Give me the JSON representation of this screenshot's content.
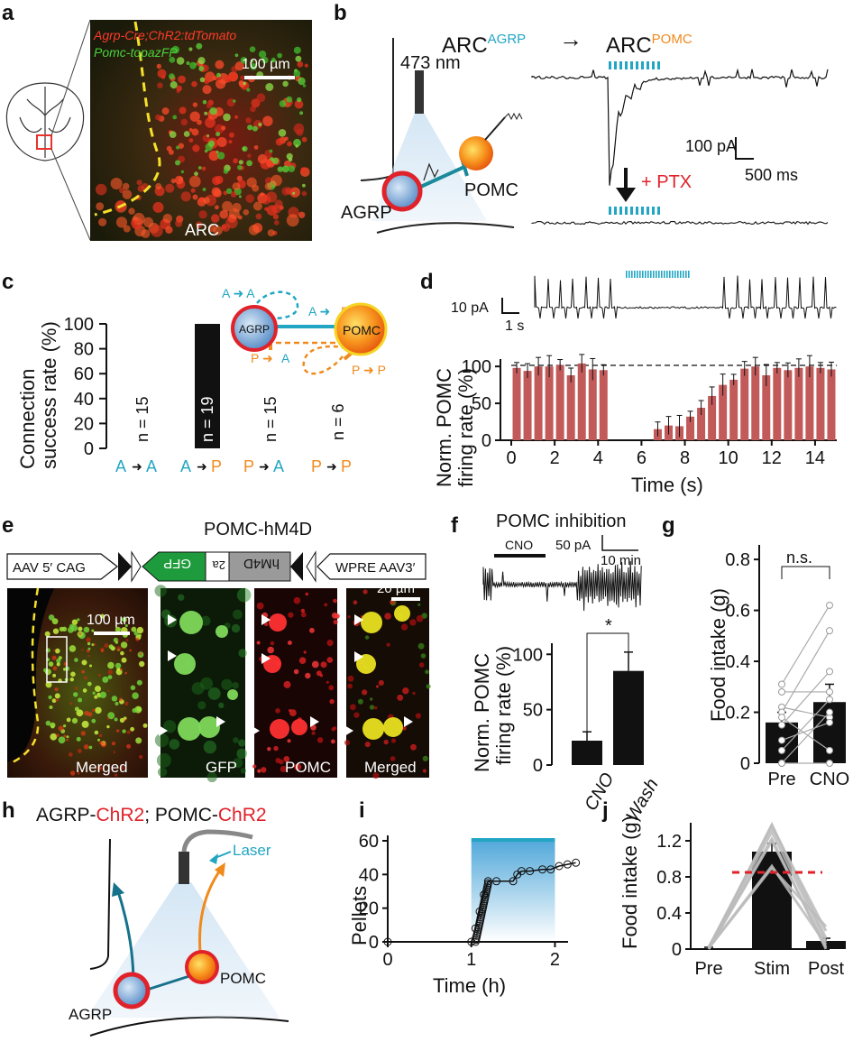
{
  "panels": {
    "a": {
      "letter": "a",
      "l1": "Agrp-Cre;ChR2:tdTomato",
      "l2": "Pomc-topazFP",
      "scale": "100 µm",
      "region": "ARC"
    },
    "b": {
      "letter": "b",
      "src": "ARC",
      "src_sup": "AGRP",
      "dst": "ARC",
      "dst_sup": "POMC",
      "wavelength": "473 nm",
      "pomc": "POMC",
      "agrp": "AGRP",
      "pa": "100 pA",
      "ms": "500 ms",
      "ptx": "+ PTX"
    },
    "c": {
      "letter": "c",
      "ylabel1": "Connection",
      "ylabel2": "success rate (%)",
      "ticks": [
        "0",
        "20",
        "40",
        "60",
        "80",
        "100"
      ],
      "ns": [
        "n = 15",
        "n = 19",
        "n = 15",
        "n = 6"
      ],
      "agrp": "AGRP",
      "pomc": "POMC"
    },
    "d": {
      "letter": "d",
      "trace_pa": "10 pA",
      "trace_s": "1 s",
      "ylabel1": "Norm. POMC",
      "ylabel2": "firing rate (%)",
      "xlabel": "Time (s)",
      "yticks": [
        "0",
        "50",
        "100"
      ],
      "xticks": [
        "0",
        "2",
        "4",
        "6",
        "8",
        "10",
        "12",
        "14"
      ]
    },
    "e": {
      "letter": "e",
      "title": "POMC-hM4D",
      "aav5": "AAV 5′ CAG",
      "gfp": "GFP",
      "p2a": "2a",
      "hm4d": "hM4D",
      "wpre": "WPRE AAV3′",
      "scale1": "100 µm",
      "scale2": "20 µm",
      "cap1": "Merged",
      "cap2": "GFP",
      "cap3": "POMC",
      "cap4": "Merged"
    },
    "f": {
      "letter": "f",
      "title": "POMC inhibition",
      "cno_bar": "CNO",
      "pa": "50 pA",
      "min": "10 min",
      "ylabel1": "Norm. POMC",
      "ylabel2": "firing rate (%)",
      "yticks": [
        "0",
        "50",
        "100"
      ],
      "star": "*",
      "xcats": [
        "CNO",
        "Wash"
      ]
    },
    "g": {
      "letter": "g",
      "ylabel": "Food intake (g)",
      "yticks": [
        "0",
        "0.2",
        "0.4",
        "0.6",
        "0.8"
      ],
      "ns": "n.s.",
      "xcats": [
        "Pre",
        "CNO"
      ]
    },
    "h": {
      "letter": "h",
      "t1": "AGRP-",
      "t2": "ChR2",
      "t3": "; POMC-",
      "t4": "ChR2",
      "laser": "Laser",
      "pomc": "POMC",
      "agrp": "AGRP"
    },
    "i": {
      "letter": "i",
      "ylabel": "Pellets",
      "xlabel": "Time (h)",
      "yticks": [
        "0",
        "20",
        "40",
        "60"
      ],
      "xticks": [
        "0",
        "1",
        "2"
      ]
    },
    "j": {
      "letter": "j",
      "ylabel": "Food intake (g)",
      "yticks": [
        "0",
        "0.4",
        "0.8",
        "1.2"
      ],
      "xcats": [
        "Pre",
        "Stim",
        "Post"
      ]
    }
  },
  "chart_data": [
    {
      "panel": "c",
      "type": "bar",
      "categories": [
        "A→A",
        "A→P",
        "P→A",
        "P→P"
      ],
      "values": [
        0,
        100,
        0,
        0
      ],
      "ylabel": "Connection success rate (%)",
      "ylim": [
        0,
        100
      ]
    },
    {
      "panel": "d",
      "type": "bar",
      "x": [
        0.25,
        0.75,
        1.25,
        1.75,
        2.25,
        2.75,
        3.25,
        3.75,
        4.25,
        4.75,
        5.25,
        5.75,
        6.25,
        6.75,
        7.25,
        7.75,
        8.25,
        8.75,
        9.25,
        9.75,
        10.25,
        10.75,
        11.25,
        11.75,
        12.25,
        12.75,
        13.25,
        13.75,
        14.25,
        14.75
      ],
      "values": [
        98,
        94,
        100,
        100,
        102,
        88,
        104,
        96,
        95,
        0,
        0,
        0,
        0,
        15,
        20,
        19,
        32,
        44,
        60,
        75,
        82,
        97,
        100,
        88,
        98,
        95,
        98,
        100,
        98,
        96
      ],
      "ylabel": "Norm. POMC firing rate (%)",
      "xlabel": "Time (s)",
      "xlim": [
        0,
        15
      ],
      "ylim": [
        0,
        110
      ]
    },
    {
      "panel": "f",
      "type": "bar",
      "categories": [
        "CNO",
        "Wash"
      ],
      "values": [
        22,
        85
      ],
      "errors": [
        8,
        17
      ],
      "ylabel": "Norm. POMC firing rate (%)",
      "ylim": [
        0,
        110
      ]
    },
    {
      "panel": "g",
      "type": "bar",
      "categories": [
        "Pre",
        "CNO"
      ],
      "values": [
        0.16,
        0.24
      ],
      "errors": [
        0.04,
        0.07
      ],
      "ylabel": "Food intake (g)",
      "ylim": [
        0,
        0.85
      ],
      "paired": [
        [
          0.31,
          0.62
        ],
        [
          0.28,
          0.28
        ],
        [
          0.22,
          0.18
        ],
        [
          0.2,
          0.52
        ],
        [
          0.15,
          0.36
        ],
        [
          0.05,
          0.25
        ],
        [
          0.18,
          0.05
        ],
        [
          0.0,
          0.2
        ],
        [
          0.09,
          0.16
        ],
        [
          0.0,
          0.0
        ]
      ]
    },
    {
      "panel": "i",
      "type": "line",
      "xlabel": "Time (h)",
      "ylabel": "Pellets",
      "xlim": [
        0,
        2.2
      ],
      "ylim": [
        0,
        60
      ],
      "x": [
        0,
        1,
        1.05,
        1.1,
        1.15,
        1.2,
        1.3,
        1.5,
        1.55,
        1.6,
        1.7,
        1.85,
        1.95,
        2.05,
        2.15,
        2.25
      ],
      "y": [
        0,
        0,
        8,
        18,
        28,
        36,
        36,
        36,
        40,
        42,
        42,
        43,
        43,
        45,
        46,
        47
      ]
    },
    {
      "panel": "j",
      "type": "bar",
      "categories": [
        "Pre",
        "Stim",
        "Post"
      ],
      "values": [
        0.01,
        1.08,
        0.09
      ],
      "errors": [
        0.01,
        0.09,
        0.03
      ],
      "ylabel": "Food intake (g)",
      "ylim": [
        0,
        1.4
      ],
      "reference_line": 0.85
    }
  ]
}
